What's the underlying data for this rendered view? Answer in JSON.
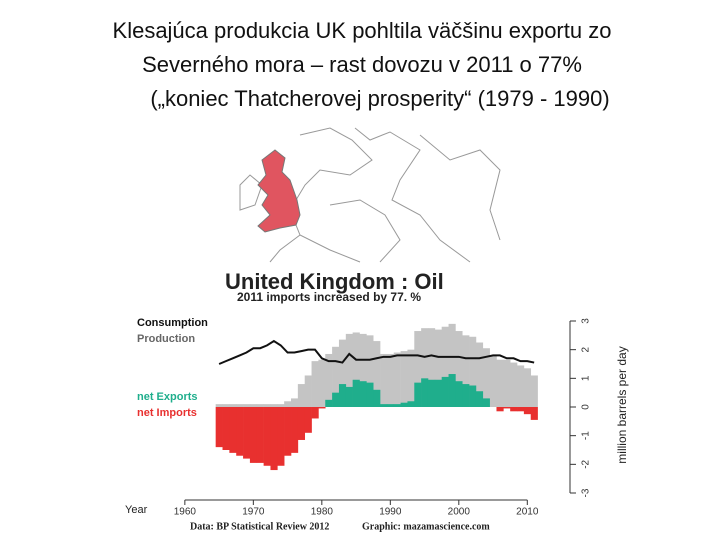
{
  "slide": {
    "title_lines": [
      "Klesajúca produkcia UK pohltila väčšinu exportu zo",
      "Severného mora – rast dovozu v 2011 o 77%",
      "(„koniec Thatcherovej prosperity“ (1979 - 1990)"
    ]
  },
  "chart_data": {
    "type": "bar",
    "title": "United Kingdom : Oil",
    "subtitle": "2011 imports increased by 77. %",
    "x_axis_label": "Year",
    "y_axis_label": "million barrels per day",
    "source": "Data: BP Statistical Review 2012",
    "credit": "Graphic: mazamascience.com",
    "x": [
      1965,
      1966,
      1967,
      1968,
      1969,
      1970,
      1971,
      1972,
      1973,
      1974,
      1975,
      1976,
      1977,
      1978,
      1979,
      1980,
      1981,
      1982,
      1983,
      1984,
      1985,
      1986,
      1987,
      1988,
      1989,
      1990,
      1991,
      1992,
      1993,
      1994,
      1995,
      1996,
      1997,
      1998,
      1999,
      2000,
      2001,
      2002,
      2003,
      2004,
      2005,
      2006,
      2007,
      2008,
      2009,
      2010,
      2011
    ],
    "xlim": [
      1959,
      2012
    ],
    "xticks": [
      1960,
      1970,
      1980,
      1990,
      2000,
      2010
    ],
    "ylim": [
      -3,
      3
    ],
    "yticks": [
      -3,
      -2,
      -1,
      0,
      1,
      2,
      3
    ],
    "series": [
      {
        "name": "Consumption",
        "type": "line",
        "color": "#111111",
        "values": [
          1.5,
          1.6,
          1.7,
          1.8,
          1.9,
          2.05,
          2.05,
          2.15,
          2.3,
          2.15,
          1.9,
          1.9,
          1.95,
          2.0,
          2.0,
          1.7,
          1.6,
          1.6,
          1.55,
          1.85,
          1.65,
          1.65,
          1.65,
          1.7,
          1.75,
          1.75,
          1.8,
          1.8,
          1.8,
          1.8,
          1.75,
          1.8,
          1.75,
          1.75,
          1.75,
          1.75,
          1.7,
          1.7,
          1.7,
          1.75,
          1.8,
          1.8,
          1.7,
          1.7,
          1.6,
          1.6,
          1.55
        ]
      },
      {
        "name": "Production",
        "type": "bar",
        "color": "#c4c4c4",
        "values": [
          0.1,
          0.1,
          0.1,
          0.1,
          0.1,
          0.1,
          0.1,
          0.1,
          0.1,
          0.1,
          0.2,
          0.3,
          0.8,
          1.1,
          1.6,
          1.65,
          1.85,
          2.1,
          2.35,
          2.55,
          2.6,
          2.55,
          2.5,
          2.3,
          1.85,
          1.85,
          1.9,
          1.95,
          2.0,
          2.65,
          2.75,
          2.75,
          2.7,
          2.8,
          2.9,
          2.65,
          2.5,
          2.45,
          2.25,
          2.05,
          1.8,
          1.65,
          1.65,
          1.55,
          1.45,
          1.35,
          1.1
        ]
      },
      {
        "name": "net Exports",
        "type": "bar",
        "color": "#1fae8c",
        "values": [
          null,
          null,
          null,
          null,
          null,
          null,
          null,
          null,
          null,
          null,
          null,
          null,
          null,
          null,
          null,
          null,
          0.25,
          0.5,
          0.8,
          0.7,
          0.95,
          0.9,
          0.85,
          0.6,
          0.1,
          0.1,
          0.1,
          0.15,
          0.2,
          0.85,
          1.0,
          0.95,
          0.95,
          1.05,
          1.15,
          0.9,
          0.8,
          0.75,
          0.55,
          0.3,
          0,
          null,
          null,
          null,
          null,
          null,
          null
        ]
      },
      {
        "name": "net Imports",
        "type": "bar",
        "color": "#e8302f",
        "values": [
          -1.4,
          -1.5,
          -1.6,
          -1.7,
          -1.8,
          -1.95,
          -1.95,
          -2.05,
          -2.2,
          -2.05,
          -1.7,
          -1.6,
          -1.15,
          -0.9,
          -0.4,
          -0.05,
          null,
          null,
          null,
          null,
          null,
          null,
          null,
          null,
          null,
          null,
          null,
          null,
          null,
          null,
          null,
          null,
          null,
          null,
          null,
          null,
          null,
          null,
          null,
          null,
          null,
          -0.15,
          -0.05,
          -0.15,
          -0.15,
          -0.25,
          -0.45
        ]
      }
    ]
  }
}
